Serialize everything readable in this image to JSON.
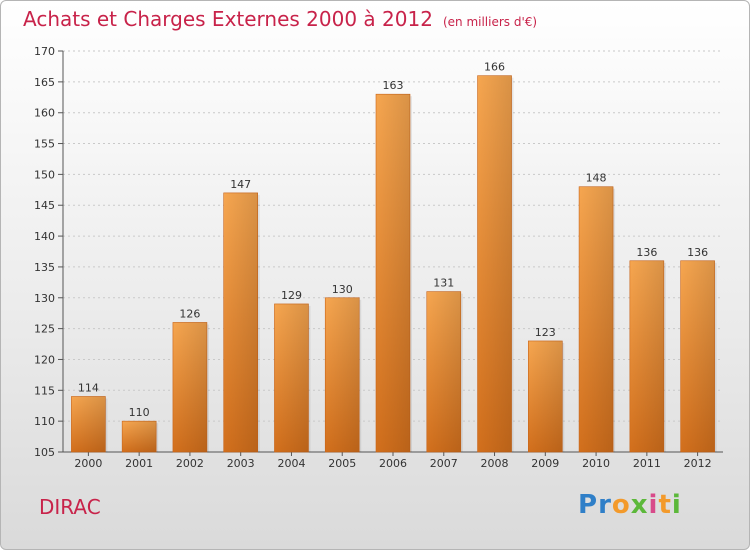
{
  "header": {
    "title": "Achats et Charges Externes 2000 à 2012",
    "subtitle": "(en milliers d'€)"
  },
  "footer": {
    "commune": "DIRAC",
    "logo_text": "Proxiti"
  },
  "chart_data": {
    "type": "bar",
    "title": "Achats et Charges Externes 2000 à 2012",
    "subtitle": "(en milliers d'€)",
    "xlabel": "",
    "ylabel": "",
    "categories": [
      "2000",
      "2001",
      "2002",
      "2003",
      "2004",
      "2005",
      "2006",
      "2007",
      "2008",
      "2009",
      "2010",
      "2011",
      "2012"
    ],
    "values": [
      114,
      110,
      126,
      147,
      129,
      130,
      163,
      131,
      166,
      123,
      148,
      136,
      136
    ],
    "ylim": [
      105,
      170
    ],
    "yticks": [
      105,
      110,
      115,
      120,
      125,
      130,
      135,
      140,
      145,
      150,
      155,
      160,
      165,
      170
    ],
    "grid": true,
    "bar_color": "#f0a045",
    "bar_color_dark": "#d06d1a"
  }
}
